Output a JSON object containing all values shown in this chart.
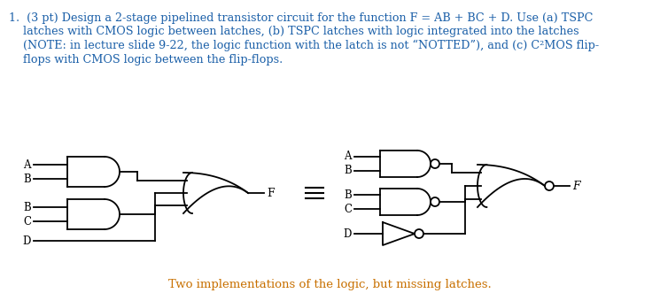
{
  "caption": "Two implementations of the logic, but missing latches.",
  "caption_color": "#c87000",
  "text_color": "#1a5fa8",
  "bg_color": "#ffffff",
  "line_color": "#000000",
  "font_size_body": 9.2,
  "font_size_caption": 9.5,
  "body_line1": "1.  (3 pt) Design a 2-stage pipelined transistor circuit for the function F = AB + BC + D. Use (a) TSPC",
  "body_line2": "    latches with CMOS logic between latches, (b) TSPC latches with logic integrated into the latches",
  "body_line3": "    (NOTE: in lecture slide 9-22, the logic function with the latch is not “NOTTED”), and (c) C²MOS flip-",
  "body_line4": "    flops with CMOS logic between the flip-flops."
}
